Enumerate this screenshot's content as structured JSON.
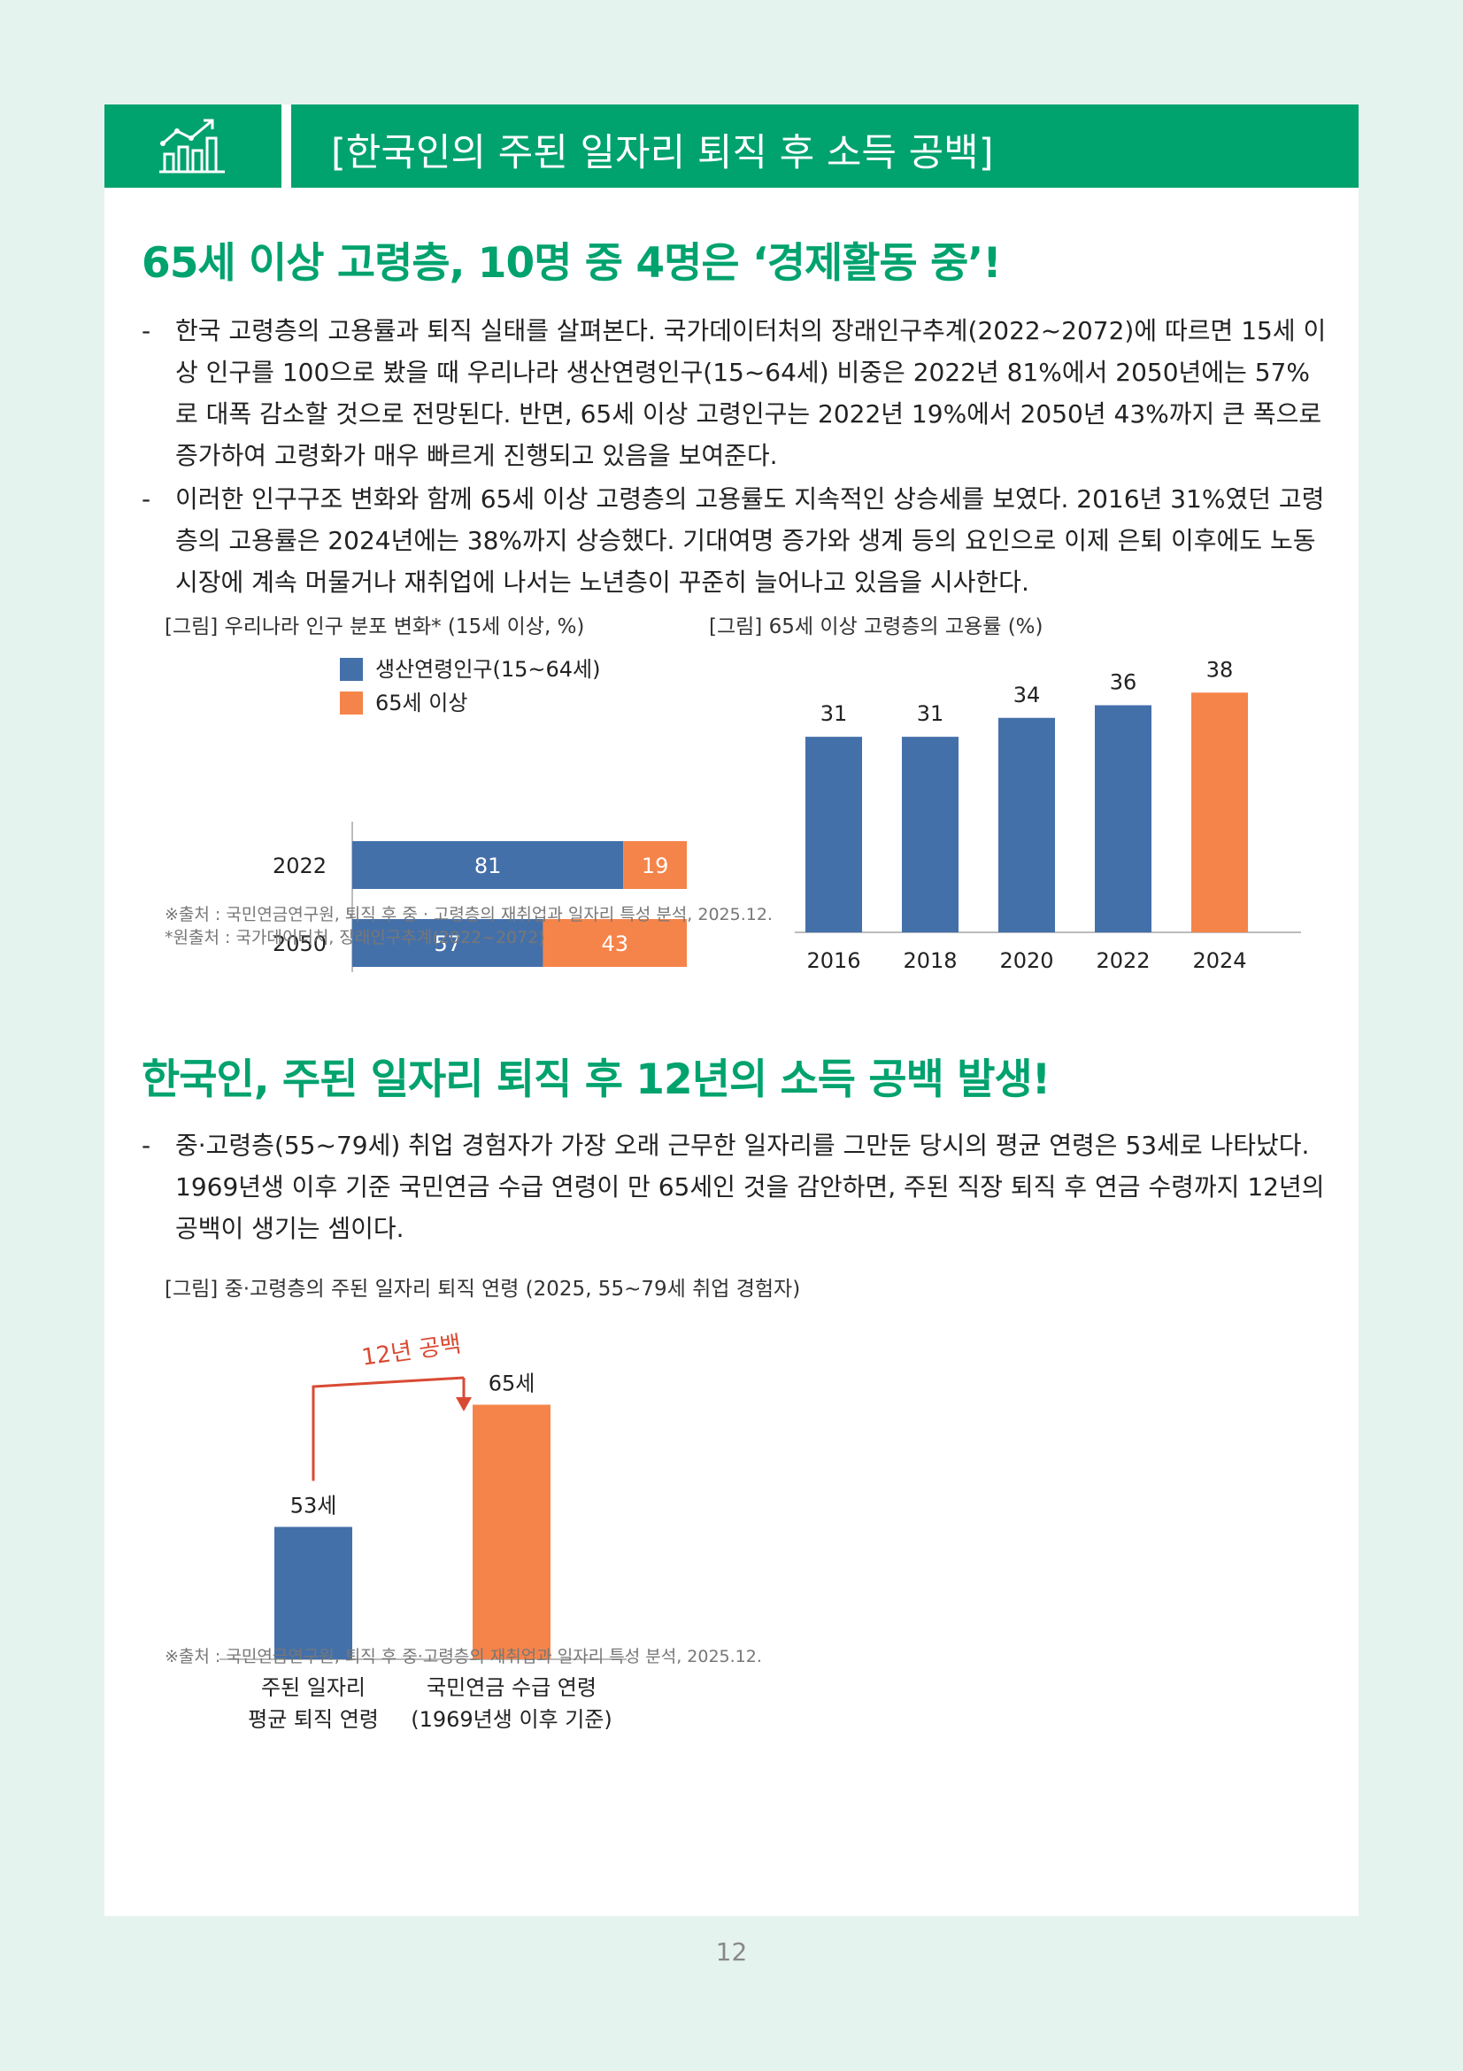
{
  "header": {
    "title": "[한국인의 주된 일자리 퇴직 후 소득 공백]",
    "icon": "growth-chart-icon"
  },
  "section1": {
    "title": "65세 이상 고령층, 10명 중 4명은 ‘경제활동 중’!",
    "paragraphs": [
      "한국 고령층의 고용률과 퇴직 실태를 살펴본다. 국가데이터처의 장래인구추계(2022~2072)에 따르면 15세 이상 인구를 100으로 봤을 때 우리나라 생산연령인구(15~64세) 비중은 2022년 81%에서 2050년에는 57%로 대폭 감소할 것으로 전망된다. 반면, 65세 이상 고령인구는 2022년 19%에서 2050년 43%까지 큰 폭으로 증가하여 고령화가 매우 빠르게 진행되고 있음을 보여준다.",
      "이러한 인구구조 변화와 함께 65세 이상 고령층의 고용률도 지속적인 상승세를 보였다. 2016년 31%였던 고령층의 고용률은 2024년에는 38%까지 상승했다. 기대여명 증가와 생계 등의 요인으로 이제 은퇴 이후에도 노동시장에 계속 머물거나 재취업에 나서는 노년층이 꾸준히 늘어나고 있음을 시사한다."
    ],
    "dash": "-",
    "chart1_caption": "[그림] 우리나라 인구 분포 변화* (15세 이상, %)",
    "chart2_caption": "[그림] 65세 이상 고령층의 고용률 (%)",
    "notes": [
      "※출처 : 국민연금연구원, 퇴직 후 중 · 고령층의 재취업과 일자리 특성 분석, 2025.12.",
      "*원출처 : 국가데이터처, 장래인구추계(2022~2072)"
    ]
  },
  "section2": {
    "title": "한국인, 주된 일자리 퇴직 후 12년의 소득 공백 발생!",
    "paragraphs": [
      "중·고령층(55~79세) 취업 경험자가 가장 오래 근무한 일자리를 그만둔 당시의 평균 연령은 53세로 나타났다. 1969년생 이후 기준 국민연금 수급 연령이 만 65세인 것을 감안하면, 주된 직장 퇴직 후 연금 수령까지 12년의 공백이 생기는 셈이다."
    ],
    "chart3_caption": "[그림] 중·고령층의 주된 일자리 퇴직 연령 (2025, 55~79세 취업 경험자)",
    "note": "※출처 : 국민연금연구원, 퇴직 후 중·고령층의 재취업과 일자리 특성 분석, 2025.12."
  },
  "chart_data": [
    {
      "type": "bar",
      "orientation": "horizontal-stacked",
      "categories": [
        "2022",
        "2050"
      ],
      "series": [
        {
          "name": "생산연령인구(15~64세)",
          "values": [
            81,
            57
          ],
          "color": "#4470aa"
        },
        {
          "name": "65세 이상",
          "values": [
            19,
            43
          ],
          "color": "#f5844a"
        }
      ],
      "xlim": [
        0,
        100
      ],
      "legend": "top"
    },
    {
      "type": "bar",
      "categories": [
        "2016",
        "2018",
        "2020",
        "2022",
        "2024"
      ],
      "values": [
        31,
        31,
        34,
        36,
        38
      ],
      "colors": [
        "#4470aa",
        "#4470aa",
        "#4470aa",
        "#4470aa",
        "#f5844a"
      ],
      "ylim": [
        0,
        40
      ]
    },
    {
      "type": "bar",
      "categories": [
        "주된 일자리\n평균 퇴직 연령",
        "국민연금 수급 연령\n(1969년생 이후 기준)"
      ],
      "category_lines": [
        [
          "주된 일자리",
          "평균 퇴직 연령"
        ],
        [
          "국민연금 수급 연령",
          "(1969년생 이후 기준)"
        ]
      ],
      "values": [
        53,
        65
      ],
      "value_labels": [
        "53세",
        "65세"
      ],
      "colors": [
        "#4470aa",
        "#f5844a"
      ],
      "annotation": "12년 공백",
      "annotation_color": "#d94a33",
      "ylim": [
        40,
        70
      ]
    }
  ]
}
